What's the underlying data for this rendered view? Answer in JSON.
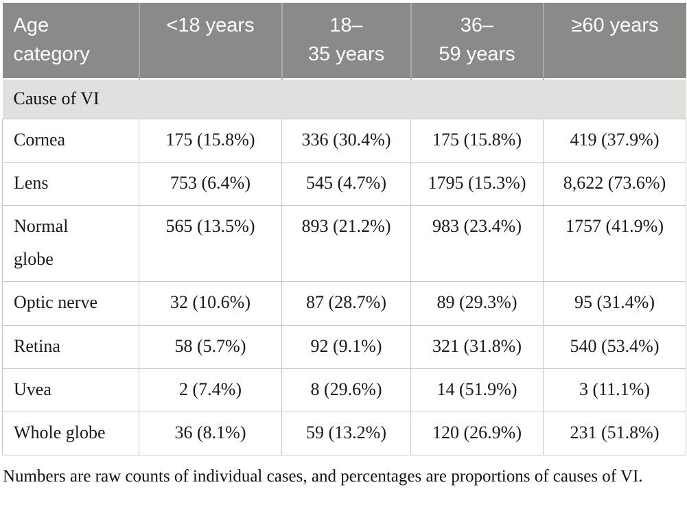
{
  "table": {
    "columns": [
      {
        "label": "Age\ncategory"
      },
      {
        "label": "<18 years"
      },
      {
        "label": "18–\n35 years"
      },
      {
        "label": "36–\n59 years"
      },
      {
        "label": "≥60 years"
      }
    ],
    "section_header": "Cause of VI",
    "rows": [
      {
        "label": "Cornea",
        "values": [
          "175 (15.8%)",
          "336 (30.4%)",
          "175 (15.8%)",
          "419 (37.9%)"
        ]
      },
      {
        "label": "Lens",
        "values": [
          "753 (6.4%)",
          "545 (4.7%)",
          "1795 (15.3%)",
          "8,622 (73.6%)"
        ]
      },
      {
        "label": "Normal\nglobe",
        "values": [
          "565 (13.5%)",
          "893 (21.2%)",
          "983 (23.4%)",
          "1757 (41.9%)"
        ]
      },
      {
        "label": "Optic nerve",
        "values": [
          "32 (10.6%)",
          "87 (28.7%)",
          "89 (29.3%)",
          "95 (31.4%)"
        ]
      },
      {
        "label": "Retina",
        "values": [
          "58 (5.7%)",
          "92 (9.1%)",
          "321 (31.8%)",
          "540 (53.4%)"
        ]
      },
      {
        "label": "Uvea",
        "values": [
          "2 (7.4%)",
          "8 (29.6%)",
          "14 (51.9%)",
          "3 (11.1%)"
        ]
      },
      {
        "label": "Whole globe",
        "values": [
          "36 (8.1%)",
          "59 (13.2%)",
          "120 (26.9%)",
          "231 (51.8%)"
        ]
      }
    ],
    "footnote": "Numbers are raw counts of individual cases, and percentages are proportions of causes of VI."
  },
  "colors": {
    "header_bg": "#8a8b88",
    "header_text": "#ffffff",
    "section_bg": "#e0e0df",
    "border": "#c8c8c6",
    "body_text": "#1a1a1a"
  }
}
